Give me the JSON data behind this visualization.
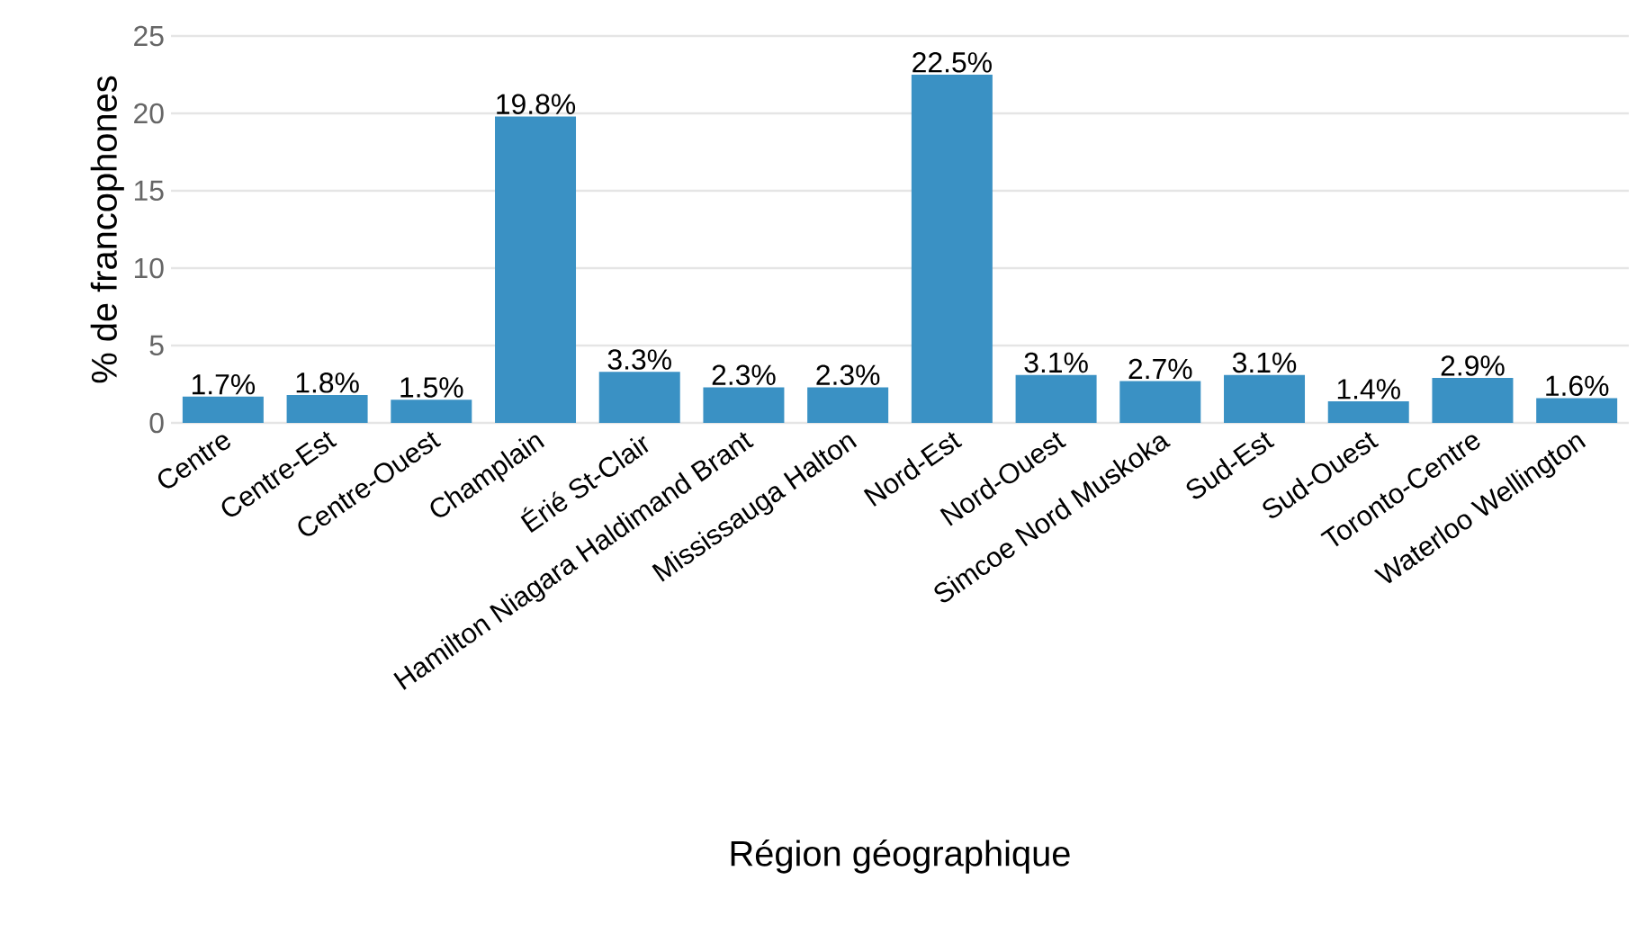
{
  "chart_data": {
    "type": "bar",
    "xlabel": "Région géographique",
    "ylabel": "% de francophones",
    "categories": [
      "Centre",
      "Centre-Est",
      "Centre-Ouest",
      "Champlain",
      "Érié St-Clair",
      "Hamilton Niagara Haldimand Brant",
      "Mississauga Halton",
      "Nord-Est",
      "Nord-Ouest",
      "Simcoe Nord Muskoka",
      "Sud-Est",
      "Sud-Ouest",
      "Toronto-Centre",
      "Waterloo Wellington"
    ],
    "values": [
      1.7,
      1.8,
      1.5,
      19.8,
      3.3,
      2.3,
      2.3,
      22.5,
      3.1,
      2.7,
      3.1,
      1.4,
      2.9,
      1.6
    ],
    "value_labels": [
      "1.7%",
      "1.8%",
      "1.5%",
      "19.8%",
      "3.3%",
      "2.3%",
      "2.3%",
      "22.5%",
      "3.1%",
      "2.7%",
      "3.1%",
      "1.4%",
      "2.9%",
      "1.6%"
    ],
    "color": "#3a91c4",
    "ylim": [
      0,
      25
    ],
    "yticks": [
      0,
      5,
      10,
      15,
      20,
      25
    ],
    "grid": "y"
  }
}
